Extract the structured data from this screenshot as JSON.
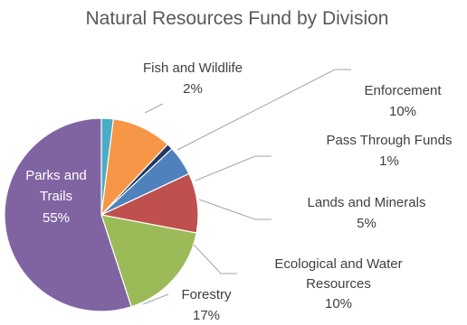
{
  "chart_data": {
    "type": "pie",
    "title": "Natural Resources Fund by Division",
    "slices": [
      {
        "label": "Fish and Wildlife",
        "value": 2,
        "value_label": "2%",
        "color": "#4bacc6"
      },
      {
        "label": "Enforcement",
        "value": 10,
        "value_label": "10%",
        "color": "#f79646"
      },
      {
        "label": "Pass Through Funds",
        "value": 1,
        "value_label": "1%",
        "color": "#1f3864"
      },
      {
        "label": "Lands and Minerals",
        "value": 5,
        "value_label": "5%",
        "color": "#4f81bd"
      },
      {
        "label": "Ecological and Water Resources",
        "value": 10,
        "value_label": "10%",
        "color": "#c0504d"
      },
      {
        "label": "Forestry",
        "value": 17,
        "value_label": "17%",
        "color": "#9bbb59"
      },
      {
        "label": "Parks and Trails",
        "value": 55,
        "value_label": "55%",
        "color": "#8064a2"
      }
    ],
    "legend": "none"
  }
}
